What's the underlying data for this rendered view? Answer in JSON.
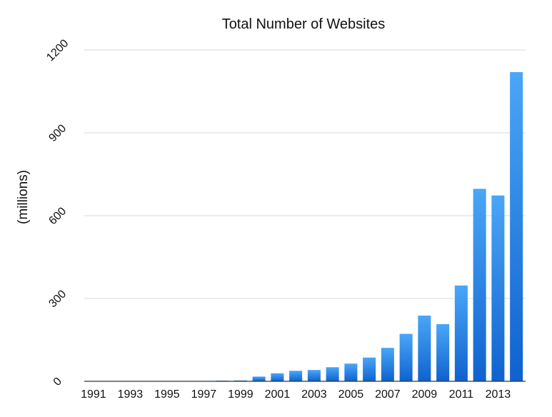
{
  "chart_data": {
    "type": "bar",
    "title": "Total Number of Websites",
    "xlabel": "",
    "ylabel": "(millions)",
    "ylim": [
      0,
      1200
    ],
    "yticks": [
      0,
      300,
      600,
      900,
      1200
    ],
    "grid": true,
    "legend": "none",
    "bar_color": "#2a86e6",
    "bar_color_light": "#4aa6f7",
    "bar_color_dark": "#0f62cf",
    "categories": [
      "1991",
      "1992",
      "1993",
      "1994",
      "1995",
      "1996",
      "1997",
      "1998",
      "1999",
      "2000",
      "2001",
      "2002",
      "2003",
      "2004",
      "2005",
      "2006",
      "2007",
      "2008",
      "2009",
      "2010",
      "2011",
      "2012",
      "2013",
      "2014"
    ],
    "xtick_labels": [
      "1991",
      "1993",
      "1995",
      "1997",
      "1999",
      "2001",
      "2003",
      "2005",
      "2007",
      "2009",
      "2011",
      "2013"
    ],
    "values": [
      0,
      0,
      0,
      0,
      0.02,
      0.26,
      1.1,
      2.4,
      3.2,
      17,
      29,
      38,
      41,
      51,
      64,
      86,
      121,
      172,
      238,
      207,
      347,
      697,
      673,
      1120
    ]
  }
}
